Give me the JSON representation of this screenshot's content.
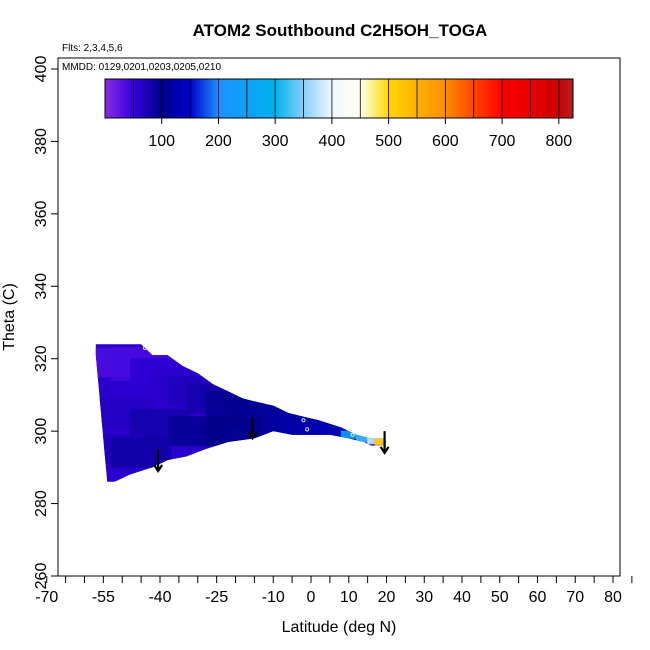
{
  "chart_data": {
    "type": "heatmap",
    "title": "ATOM2 Southbound C2H5OH_TOGA",
    "flights_label": "Flts: 2,3,4,5,6",
    "dates_label": "MMDD: 0129,0201,0203,0205,0210",
    "xlabel": "Latitude (deg N)",
    "ylabel": "Theta (C)",
    "xlim": [
      -70,
      85
    ],
    "ylim": [
      260,
      405
    ],
    "x_ticks": [
      -70,
      -55,
      -40,
      -25,
      -10,
      0,
      10,
      20,
      30,
      40,
      50,
      60,
      70,
      80
    ],
    "x_tick_labels": [
      "-70",
      "-55",
      "-40",
      "-25",
      "-10",
      "0",
      "10",
      "20",
      "30",
      "40",
      "50",
      "60",
      "70",
      "80"
    ],
    "x_minor_ticks": [
      -65,
      -60,
      -50,
      -45,
      -35,
      -30,
      -20,
      -15,
      -5,
      5,
      15,
      25,
      35,
      45,
      55,
      65,
      75,
      85
    ],
    "y_ticks": [
      260,
      280,
      300,
      320,
      340,
      360,
      380,
      400
    ],
    "y_tick_labels": [
      "260",
      "280",
      "300",
      "320",
      "340",
      "360",
      "380",
      "400"
    ],
    "colorbar": {
      "min": 0,
      "max": 825,
      "ticks": [
        100,
        200,
        300,
        400,
        500,
        600,
        700,
        800
      ],
      "tick_labels": [
        "100",
        "200",
        "300",
        "400",
        "500",
        "600",
        "700",
        "800"
      ],
      "stops": [
        {
          "v": 0,
          "color": "#8a2be2"
        },
        {
          "v": 50,
          "color": "#3300dd"
        },
        {
          "v": 100,
          "color": "#00008b"
        },
        {
          "v": 150,
          "color": "#0000cd"
        },
        {
          "v": 200,
          "color": "#1e90ff"
        },
        {
          "v": 300,
          "color": "#00b2ee"
        },
        {
          "v": 350,
          "color": "#87cefa"
        },
        {
          "v": 400,
          "color": "#f0f8ff"
        },
        {
          "v": 450,
          "color": "#fffff0"
        },
        {
          "v": 500,
          "color": "#ffd700"
        },
        {
          "v": 600,
          "color": "#ff8c00"
        },
        {
          "v": 700,
          "color": "#ff0000"
        },
        {
          "v": 800,
          "color": "#cd0000"
        },
        {
          "v": 825,
          "color": "#b22222"
        }
      ]
    },
    "field_outline": [
      [
        -57,
        324
      ],
      [
        -56,
        324
      ],
      [
        -45,
        324
      ],
      [
        -42,
        321
      ],
      [
        -38,
        321
      ],
      [
        -34,
        318
      ],
      [
        -30,
        316
      ],
      [
        -26,
        313
      ],
      [
        -22,
        311
      ],
      [
        -18,
        309
      ],
      [
        -14,
        308
      ],
      [
        -10,
        307
      ],
      [
        -6,
        305
      ],
      [
        -2,
        304
      ],
      [
        2,
        303
      ],
      [
        5,
        302
      ],
      [
        8,
        301
      ],
      [
        12,
        299
      ],
      [
        16,
        298
      ],
      [
        19,
        298
      ],
      [
        20,
        297
      ],
      [
        19,
        296
      ],
      [
        16,
        296
      ],
      [
        14,
        297
      ],
      [
        10,
        298
      ],
      [
        5,
        299
      ],
      [
        0,
        299
      ],
      [
        -5,
        299
      ],
      [
        -10,
        300
      ],
      [
        -15,
        298
      ],
      [
        -22,
        297
      ],
      [
        -28,
        295
      ],
      [
        -33,
        293
      ],
      [
        -38,
        292
      ],
      [
        -42,
        290
      ],
      [
        -48,
        288
      ],
      [
        -52,
        286
      ],
      [
        -54,
        286
      ],
      [
        -57,
        321
      ]
    ],
    "field_cells": [
      {
        "lat": -50,
        "theta": 319,
        "value": 35
      },
      {
        "lat": -45,
        "theta": 318,
        "value": 40
      },
      {
        "lat": -40,
        "theta": 316,
        "value": 55
      },
      {
        "lat": -35,
        "theta": 313,
        "value": 60
      },
      {
        "lat": -30,
        "theta": 311,
        "value": 70
      },
      {
        "lat": -25,
        "theta": 309,
        "value": 80
      },
      {
        "lat": -20,
        "theta": 307,
        "value": 95
      },
      {
        "lat": -15,
        "theta": 305,
        "value": 105
      },
      {
        "lat": -10,
        "theta": 304,
        "value": 110
      },
      {
        "lat": -5,
        "theta": 303,
        "value": 115
      },
      {
        "lat": 0,
        "theta": 302,
        "value": 120
      },
      {
        "lat": 5,
        "theta": 300,
        "value": 130
      },
      {
        "lat": -50,
        "theta": 305,
        "value": 65
      },
      {
        "lat": -40,
        "theta": 302,
        "value": 80
      },
      {
        "lat": -30,
        "theta": 300,
        "value": 95
      },
      {
        "lat": -20,
        "theta": 300,
        "value": 100
      },
      {
        "lat": -52,
        "theta": 295,
        "value": 70
      },
      {
        "lat": -45,
        "theta": 294,
        "value": 85
      },
      {
        "lat": 10,
        "theta": 299,
        "value": 250
      },
      {
        "lat": 14,
        "theta": 298,
        "value": 320
      },
      {
        "lat": 17,
        "theta": 297.5,
        "value": 380
      },
      {
        "lat": 19,
        "theta": 297,
        "value": 520
      }
    ],
    "sample_points": [
      {
        "lat": -44,
        "theta": 323
      },
      {
        "lat": -2,
        "theta": 303
      },
      {
        "lat": -1,
        "theta": 300.5
      },
      {
        "lat": 11,
        "theta": 299
      }
    ],
    "arrows": [
      {
        "lat": -40.5,
        "theta_from": 295,
        "theta_to": 289
      },
      {
        "lat": -15.5,
        "theta_from": 303.5,
        "theta_to": 298
      },
      {
        "lat": 19.5,
        "theta_from": 300,
        "theta_to": 294
      }
    ]
  }
}
